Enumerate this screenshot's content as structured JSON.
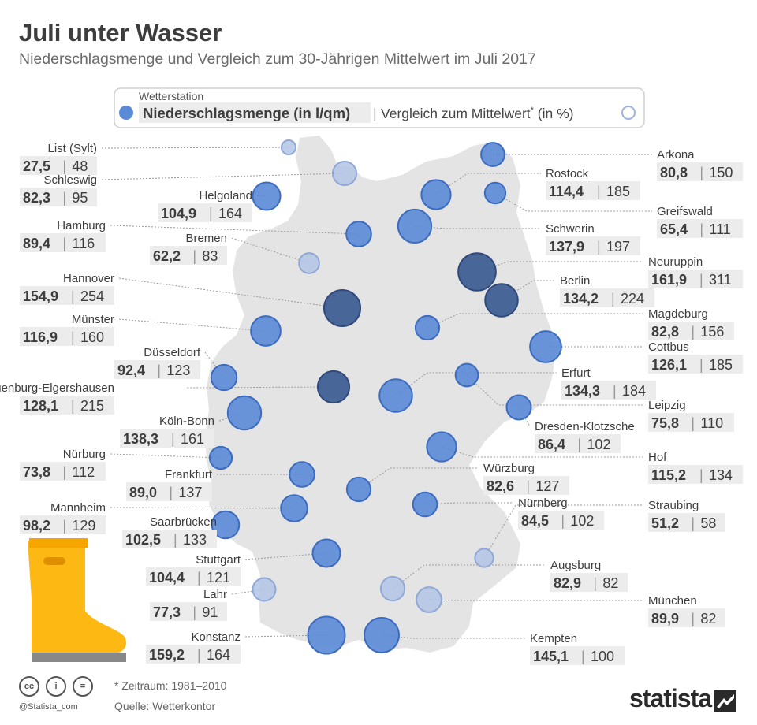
{
  "header": {
    "title": "Juli unter Wasser",
    "subtitle": "Niederschlagsmenge und Vergleich zum 30-Jährigen Mittelwert im Juli 2017"
  },
  "legend": {
    "top_label": "Wetterstation",
    "left_label": "Niederschlagsmenge (in l/qm)",
    "separator": "|",
    "right_label": "Vergleich zum Mittelwert",
    "right_sup": "*",
    "right_suffix": " (in %)"
  },
  "footer": {
    "footnote": "* Zeitraum: 1981–2010",
    "source": "Quelle: Wetterkontor",
    "handle": "@Statista_com",
    "brand": "statista"
  },
  "colors": {
    "map_fill": "#e4e4e4",
    "label_box": "#ececec",
    "circle_above": "#5b8ad6",
    "circle_dark": "#3f5f94",
    "circle_below": "#b3c6e6",
    "boot": "#fdb813",
    "legend_border": "#d0d0d0"
  },
  "chart_data": {
    "type": "bubble-map",
    "value_1_name": "Niederschlagsmenge (in l/qm)",
    "value_2_name": "Vergleich zum Mittelwert (in %)",
    "stations": [
      {
        "name": "List (Sylt)",
        "amount": "27,5",
        "pct": "48"
      },
      {
        "name": "Schleswig",
        "amount": "82,3",
        "pct": "95"
      },
      {
        "name": "Helgoland",
        "amount": "104,9",
        "pct": "164"
      },
      {
        "name": "Hamburg",
        "amount": "89,4",
        "pct": "116"
      },
      {
        "name": "Bremen",
        "amount": "62,2",
        "pct": "83"
      },
      {
        "name": "Hannover",
        "amount": "154,9",
        "pct": "254"
      },
      {
        "name": "Münster",
        "amount": "116,9",
        "pct": "160"
      },
      {
        "name": "Düsseldorf",
        "amount": "92,4",
        "pct": "123"
      },
      {
        "name": "Schauenburg-Elgershausen",
        "amount": "128,1",
        "pct": "215"
      },
      {
        "name": "Köln-Bonn",
        "amount": "138,3",
        "pct": "161"
      },
      {
        "name": "Nürburg",
        "amount": "73,8",
        "pct": "112"
      },
      {
        "name": "Frankfurt",
        "amount": "89,0",
        "pct": "137"
      },
      {
        "name": "Mannheim",
        "amount": "98,2",
        "pct": "129"
      },
      {
        "name": "Saarbrücken",
        "amount": "102,5",
        "pct": "133"
      },
      {
        "name": "Stuttgart",
        "amount": "104,4",
        "pct": "121"
      },
      {
        "name": "Lahr",
        "amount": "77,3",
        "pct": "91"
      },
      {
        "name": "Konstanz",
        "amount": "159,2",
        "pct": "164"
      },
      {
        "name": "Arkona",
        "amount": "80,8",
        "pct": "150"
      },
      {
        "name": "Rostock",
        "amount": "114,4",
        "pct": "185"
      },
      {
        "name": "Greifswald",
        "amount": "65,4",
        "pct": "111"
      },
      {
        "name": "Schwerin",
        "amount": "137,9",
        "pct": "197"
      },
      {
        "name": "Neuruppin",
        "amount": "161,9",
        "pct": "311"
      },
      {
        "name": "Berlin",
        "amount": "134,2",
        "pct": "224"
      },
      {
        "name": "Magdeburg",
        "amount": "82,8",
        "pct": "156"
      },
      {
        "name": "Cottbus",
        "amount": "126,1",
        "pct": "185"
      },
      {
        "name": "Erfurt",
        "amount": "134,3",
        "pct": "184"
      },
      {
        "name": "Leipzig",
        "amount": "75,8",
        "pct": "110"
      },
      {
        "name": "Dresden-Klotzsche",
        "amount": "86,4",
        "pct": "102"
      },
      {
        "name": "Hof",
        "amount": "115,2",
        "pct": "134"
      },
      {
        "name": "Würzburg",
        "amount": "82,6",
        "pct": "127"
      },
      {
        "name": "Nürnberg",
        "amount": "84,5",
        "pct": "102"
      },
      {
        "name": "Straubing",
        "amount": "51,2",
        "pct": "58"
      },
      {
        "name": "Augsburg",
        "amount": "82,9",
        "pct": "82"
      },
      {
        "name": "München",
        "amount": "89,9",
        "pct": "82"
      },
      {
        "name": "Kempten",
        "amount": "145,1",
        "pct": "100"
      }
    ]
  }
}
